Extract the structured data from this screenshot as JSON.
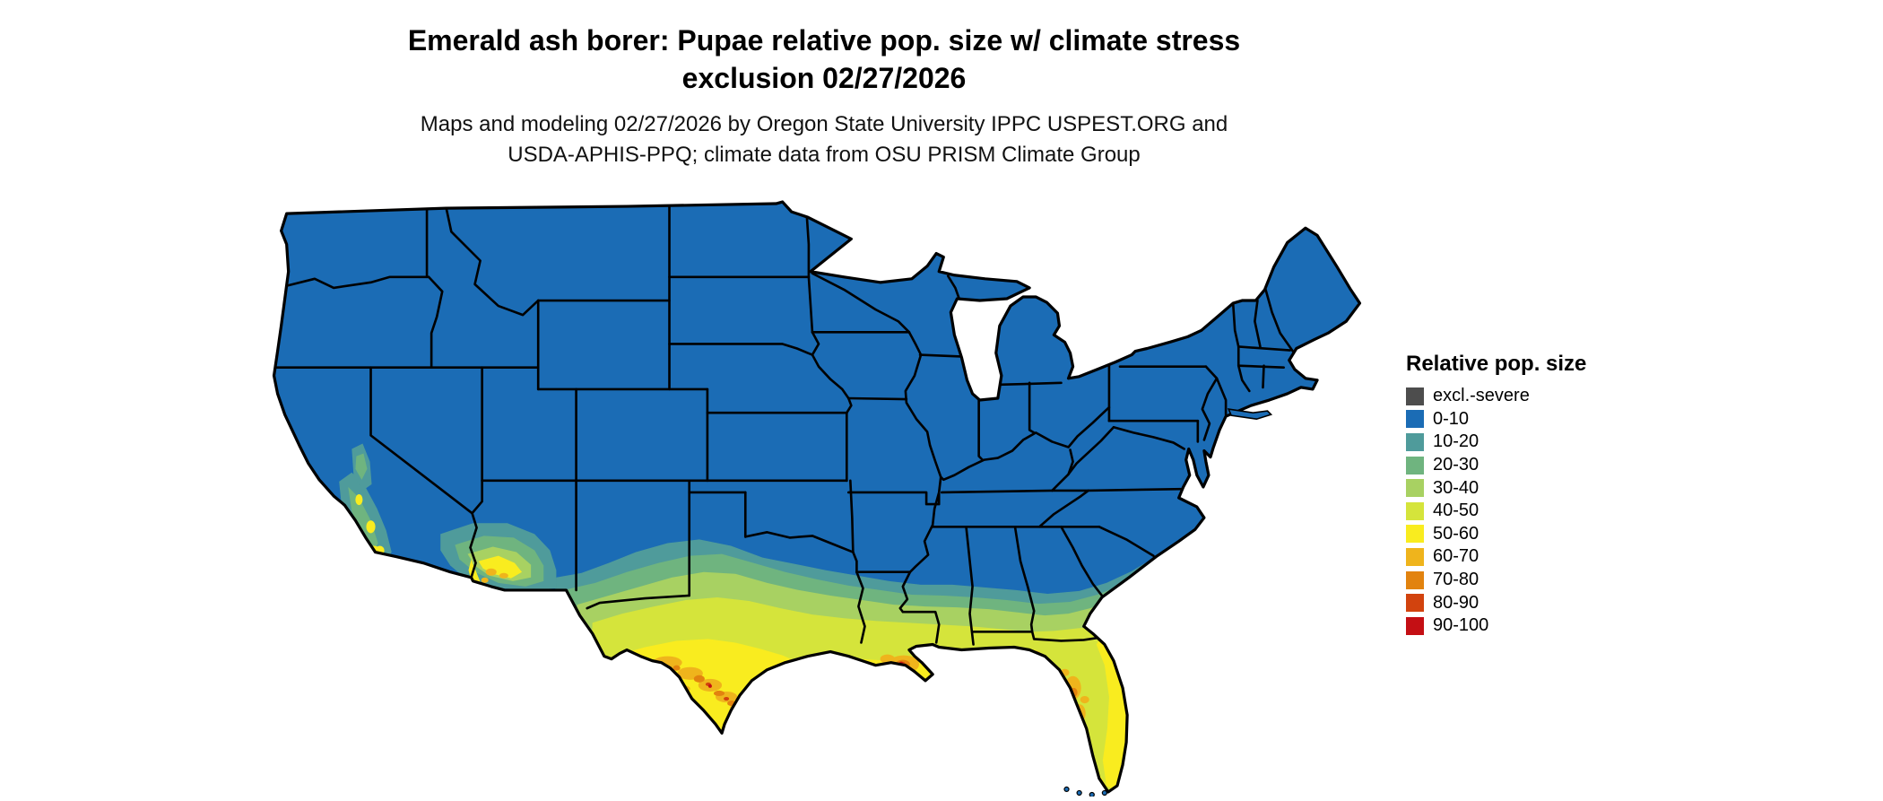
{
  "title": {
    "line1": "Emerald ash borer: Pupae relative pop. size w/ climate stress",
    "line2": "exclusion 02/27/2026"
  },
  "subtitle": {
    "line1": "Maps and modeling 02/27/2026 by Oregon State University IPPC USPEST.ORG and",
    "line2": "USDA-APHIS-PPQ; climate data from OSU PRISM Climate Group"
  },
  "legend": {
    "title": "Relative pop. size",
    "items": [
      {
        "label": "excl.-severe",
        "color": "#4d4d4d"
      },
      {
        "label": "0-10",
        "color": "#1b6cb5"
      },
      {
        "label": "10-20",
        "color": "#4f9b9b"
      },
      {
        "label": "20-30",
        "color": "#6fb47f"
      },
      {
        "label": "30-40",
        "color": "#a8d162"
      },
      {
        "label": "40-50",
        "color": "#d5e43b"
      },
      {
        "label": "50-60",
        "color": "#f9ec1f"
      },
      {
        "label": "60-70",
        "color": "#efb41c"
      },
      {
        "label": "70-80",
        "color": "#e2830f"
      },
      {
        "label": "80-90",
        "color": "#d2430e"
      },
      {
        "label": "90-100",
        "color": "#c40f14"
      }
    ]
  }
}
